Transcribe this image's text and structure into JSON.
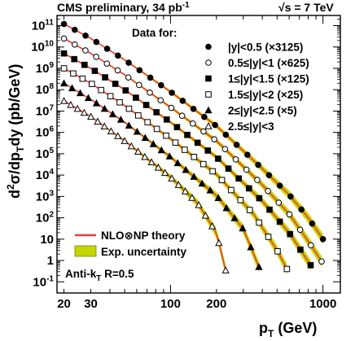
{
  "header": {
    "left": "CMS preliminary, 34 pb",
    "left_sup": "-1",
    "right_root": "√",
    "right": "s = 7 TeV"
  },
  "legend": {
    "title": "Data for:",
    "theory": "NLO⊗NP theory",
    "uncertainty": "Exp. uncertainty",
    "algo_a": "Anti-k",
    "algo_sub": "T",
    "algo_b": " R=0.5"
  },
  "axes": {
    "x_main": "p",
    "x_sub": "T",
    "x_unit": " (GeV)",
    "y_a": "d",
    "y_sup": "2",
    "y_b": "σ/dp",
    "y_sub": "T",
    "y_c": "dy (pb/GeV)"
  },
  "colors": {
    "theory": "#ee3a3a",
    "band": "#c5d600",
    "marker": "#000000"
  },
  "chart_data": {
    "type": "scatter",
    "x_scale": "log",
    "y_scale": "log",
    "xlim": [
      18,
      1300
    ],
    "ylim": [
      0.03,
      300000000000
    ],
    "x_ticks": [
      {
        "v": 20,
        "t": "20"
      },
      {
        "v": 30,
        "t": "30"
      },
      {
        "v": 100,
        "t": "100"
      },
      {
        "v": 200,
        "t": "200"
      },
      {
        "v": 1000,
        "t": "1000"
      }
    ],
    "y_ticks": [
      {
        "e": -1,
        "t": "10",
        "s": "-1"
      },
      {
        "e": 0,
        "t": "1",
        "s": ""
      },
      {
        "e": 1,
        "t": "10",
        "s": ""
      },
      {
        "e": 2,
        "t": "10",
        "s": "2"
      },
      {
        "e": 3,
        "t": "10",
        "s": "3"
      },
      {
        "e": 4,
        "t": "10",
        "s": "4"
      },
      {
        "e": 5,
        "t": "10",
        "s": "5"
      },
      {
        "e": 6,
        "t": "10",
        "s": "6"
      },
      {
        "e": 7,
        "t": "10",
        "s": "7"
      },
      {
        "e": 8,
        "t": "10",
        "s": "8"
      },
      {
        "e": 9,
        "t": "10",
        "s": "9"
      },
      {
        "e": 10,
        "t": "10",
        "s": "10"
      },
      {
        "e": 11,
        "t": "10",
        "s": "11"
      }
    ],
    "grid": false,
    "legend_position": "top-right",
    "series": [
      {
        "name": "|y|<0.5 (×3125)",
        "marker": "filled-circle",
        "x": [
          20,
          30,
          50,
          100,
          200,
          400,
          600,
          800,
          1000
        ],
        "y": [
          120000000000.0,
          25000000000.0,
          2500000000.0,
          80000000.0,
          2000000.0,
          20000.0,
          1200,
          100,
          10
        ]
      },
      {
        "name": "0.5≤|y|<1 (×625)",
        "marker": "open-circle",
        "x": [
          20,
          30,
          50,
          100,
          200,
          400,
          600,
          800,
          980
        ],
        "y": [
          25000000000.0,
          5000000000.0,
          500000000.0,
          15000000.0,
          400000.0,
          3500,
          150,
          8,
          0.9
        ]
      },
      {
        "name": "1≤|y|<1.5 (×125)",
        "marker": "filled-square",
        "x": [
          20,
          30,
          50,
          100,
          200,
          400,
          600,
          830
        ],
        "y": [
          5000000000.0,
          1000000000.0,
          100000000.0,
          3000000.0,
          70000.0,
          600,
          20,
          0.6
        ]
      },
      {
        "name": "1.5≤|y|<2 (×25)",
        "marker": "open-square",
        "x": [
          20,
          30,
          50,
          100,
          200,
          350,
          500,
          580
        ],
        "y": [
          1000000000.0,
          200000000.0,
          18000000.0,
          500000.0,
          11000.0,
          150,
          3,
          0.4
        ]
      },
      {
        "name": "2≤|y|<2.5 (×5)",
        "marker": "filled-triangle",
        "x": [
          20,
          30,
          50,
          100,
          200,
          300,
          380
        ],
        "y": [
          200000000.0,
          35000000.0,
          3000000.0,
          70000.0,
          1100,
          30,
          0.5
        ]
      },
      {
        "name": "2.5≤|y|<3",
        "marker": "open-triangle",
        "x": [
          20,
          30,
          50,
          100,
          150,
          200,
          230
        ],
        "y": [
          30000000.0,
          5500000.0,
          400000.0,
          8000,
          500,
          20,
          0.35
        ]
      }
    ]
  }
}
